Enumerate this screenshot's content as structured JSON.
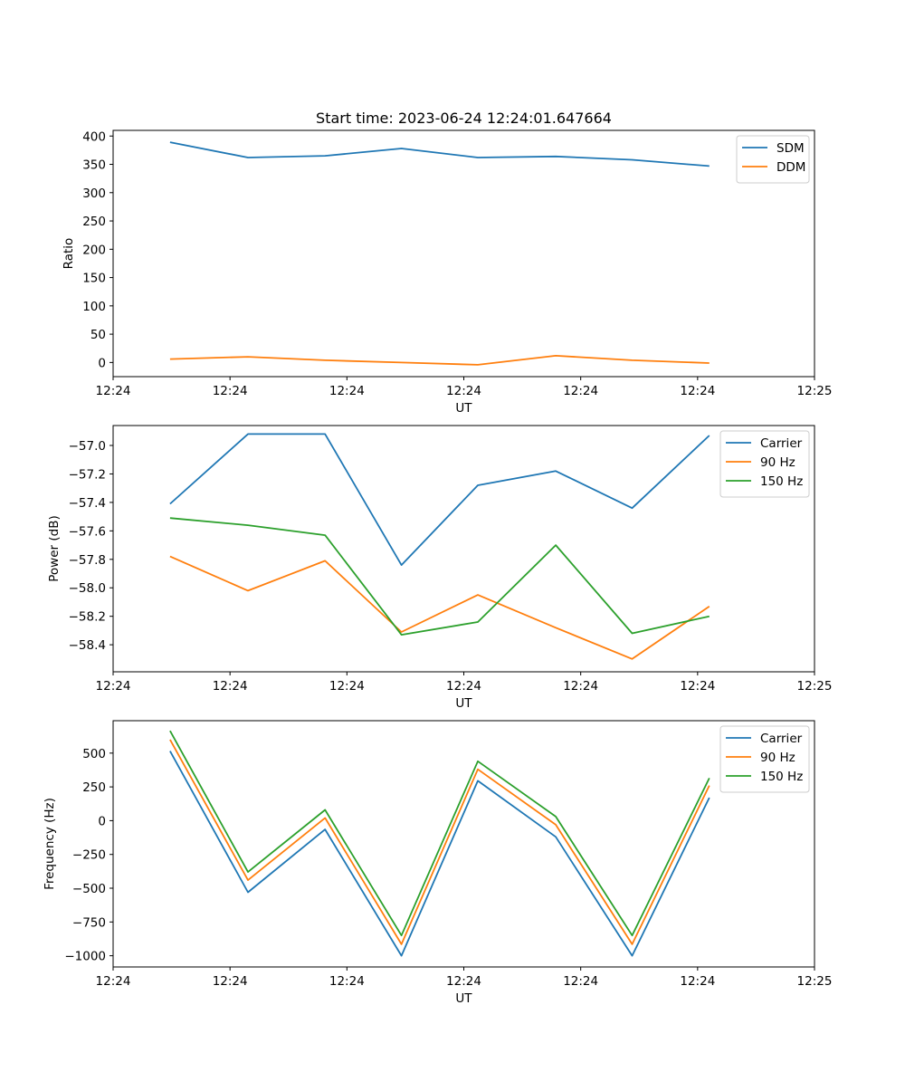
{
  "chart_data": [
    {
      "type": "line",
      "title": "Start time: 2023-06-24 12:24:01.647664",
      "xlabel": "UT",
      "ylabel": "Ratio",
      "xlim": [
        0,
        9.0
      ],
      "x_tick_positions": [
        0,
        1.5,
        3,
        4.5,
        6,
        7.5,
        9
      ],
      "x_tick_labels": [
        "12:24",
        "12:24",
        "12:24",
        "12:24",
        "12:24",
        "12:24",
        "12:25"
      ],
      "ylim": [
        -25,
        410
      ],
      "y_ticks": [
        0,
        50,
        100,
        150,
        200,
        250,
        300,
        350,
        400
      ],
      "y_tick_labels": [
        "0",
        "50",
        "100",
        "150",
        "200",
        "250",
        "300",
        "350",
        "400"
      ],
      "x": [
        0.73,
        1.73,
        2.72,
        3.7,
        4.68,
        5.68,
        6.66,
        7.65
      ],
      "legend_loc": "upper right",
      "series": [
        {
          "name": "SDM",
          "color": "#1f77b4",
          "values": [
            389,
            362,
            365,
            378,
            362,
            364,
            358,
            347
          ]
        },
        {
          "name": "DDM",
          "color": "#ff7f0e",
          "values": [
            6,
            10,
            4,
            0,
            -4,
            12,
            4,
            -1
          ]
        }
      ]
    },
    {
      "type": "line",
      "title": "",
      "xlabel": "UT",
      "ylabel": "Power (dB)",
      "xlim": [
        0,
        9.0
      ],
      "x_tick_positions": [
        0,
        1.5,
        3,
        4.5,
        6,
        7.5,
        9
      ],
      "x_tick_labels": [
        "12:24",
        "12:24",
        "12:24",
        "12:24",
        "12:24",
        "12:24",
        "12:25"
      ],
      "ylim": [
        -58.59,
        -56.86
      ],
      "y_ticks": [
        -58.4,
        -58.2,
        -58.0,
        -57.8,
        -57.6,
        -57.4,
        -57.2,
        -57.0
      ],
      "y_tick_labels": [
        "−58.4",
        "−58.2",
        "−58.0",
        "−57.8",
        "−57.6",
        "−57.4",
        "−57.2",
        "−57.0"
      ],
      "x": [
        0.73,
        1.73,
        2.72,
        3.7,
        4.68,
        5.68,
        6.66,
        7.65
      ],
      "legend_loc": "upper right",
      "series": [
        {
          "name": "Carrier",
          "color": "#1f77b4",
          "values": [
            -57.41,
            -56.92,
            -56.92,
            -57.84,
            -57.28,
            -57.18,
            -57.44,
            -56.93
          ]
        },
        {
          "name": "90 Hz",
          "color": "#ff7f0e",
          "values": [
            -57.78,
            -58.02,
            -57.81,
            -58.31,
            -58.05,
            -58.28,
            -58.5,
            -58.13
          ]
        },
        {
          "name": "150 Hz",
          "color": "#2ca02c",
          "values": [
            -57.51,
            -57.56,
            -57.63,
            -58.33,
            -58.24,
            -57.7,
            -58.32,
            -58.2
          ]
        }
      ]
    },
    {
      "type": "line",
      "title": "",
      "xlabel": "UT",
      "ylabel": "Frequency (Hz)",
      "xlim": [
        0,
        9.0
      ],
      "x_tick_positions": [
        0,
        1.5,
        3,
        4.5,
        6,
        7.5,
        9
      ],
      "x_tick_labels": [
        "12:24",
        "12:24",
        "12:24",
        "12:24",
        "12:24",
        "12:24",
        "12:25"
      ],
      "ylim": [
        -1083,
        740
      ],
      "y_ticks": [
        -1000,
        -750,
        -500,
        -250,
        0,
        250,
        500
      ],
      "y_tick_labels": [
        "−1000",
        "−750",
        "−500",
        "−250",
        "0",
        "250",
        "500"
      ],
      "x": [
        0.73,
        1.73,
        2.72,
        3.7,
        4.68,
        5.68,
        6.66,
        7.65
      ],
      "legend_loc": "upper right",
      "series": [
        {
          "name": "Carrier",
          "color": "#1f77b4",
          "values": [
            515,
            -530,
            -65,
            -1000,
            295,
            -120,
            -1000,
            170
          ]
        },
        {
          "name": "90 Hz",
          "color": "#ff7f0e",
          "values": [
            600,
            -440,
            20,
            -915,
            380,
            -30,
            -915,
            260
          ]
        },
        {
          "name": "150 Hz",
          "color": "#2ca02c",
          "values": [
            665,
            -380,
            80,
            -850,
            440,
            30,
            -850,
            315
          ]
        }
      ]
    }
  ]
}
